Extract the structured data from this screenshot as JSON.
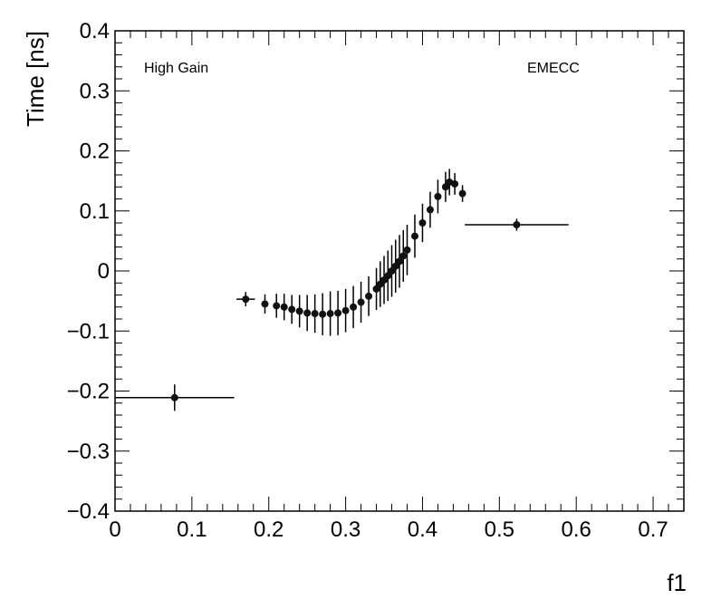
{
  "chart_data": {
    "type": "scatter",
    "xlabel": "f1",
    "ylabel": "Time [ns]",
    "xlim": [
      0,
      0.74
    ],
    "ylim": [
      -0.4,
      0.4
    ],
    "grid": false,
    "legend": "none",
    "annotations": [
      "High Gain",
      "EMECC"
    ],
    "x_major_ticks": [
      0,
      0.1,
      0.2,
      0.3,
      0.4,
      0.5,
      0.6,
      0.7
    ],
    "x_tick_labels": [
      "0",
      "0.1",
      "0.2",
      "0.3",
      "0.4",
      "0.5",
      "0.6",
      "0.7"
    ],
    "y_major_ticks": [
      -0.4,
      -0.3,
      -0.2,
      -0.1,
      0,
      0.1,
      0.2,
      0.3,
      0.4
    ],
    "y_tick_labels": [
      "−0.4",
      "−0.3",
      "−0.2",
      "−0.1",
      "0",
      "0.1",
      "0.2",
      "0.3",
      "0.4"
    ],
    "series": [
      {
        "points": [
          {
            "x": 0.0775,
            "y": -0.211,
            "xerr": 0.0775,
            "yerr": 0.022
          },
          {
            "x": 0.17,
            "y": -0.047,
            "xerr": 0.012,
            "yerr": 0.012
          },
          {
            "x": 0.195,
            "y": -0.055,
            "xerr": 0,
            "yerr": 0.016
          },
          {
            "x": 0.21,
            "y": -0.058,
            "xerr": 0,
            "yerr": 0.02
          },
          {
            "x": 0.22,
            "y": -0.06,
            "xerr": 0,
            "yerr": 0.022
          },
          {
            "x": 0.23,
            "y": -0.064,
            "xerr": 0,
            "yerr": 0.024
          },
          {
            "x": 0.24,
            "y": -0.067,
            "xerr": 0,
            "yerr": 0.027
          },
          {
            "x": 0.25,
            "y": -0.07,
            "xerr": 0,
            "yerr": 0.03
          },
          {
            "x": 0.26,
            "y": -0.071,
            "xerr": 0,
            "yerr": 0.032
          },
          {
            "x": 0.27,
            "y": -0.072,
            "xerr": 0,
            "yerr": 0.035
          },
          {
            "x": 0.28,
            "y": -0.071,
            "xerr": 0,
            "yerr": 0.037
          },
          {
            "x": 0.29,
            "y": -0.07,
            "xerr": 0,
            "yerr": 0.037
          },
          {
            "x": 0.3,
            "y": -0.066,
            "xerr": 0,
            "yerr": 0.036
          },
          {
            "x": 0.31,
            "y": -0.06,
            "xerr": 0,
            "yerr": 0.035
          },
          {
            "x": 0.32,
            "y": -0.052,
            "xerr": 0,
            "yerr": 0.034
          },
          {
            "x": 0.33,
            "y": -0.042,
            "xerr": 0,
            "yerr": 0.033
          },
          {
            "x": 0.34,
            "y": -0.03,
            "xerr": 0,
            "yerr": 0.035
          },
          {
            "x": 0.345,
            "y": -0.022,
            "xerr": 0,
            "yerr": 0.038
          },
          {
            "x": 0.35,
            "y": -0.015,
            "xerr": 0,
            "yerr": 0.04
          },
          {
            "x": 0.355,
            "y": -0.008,
            "xerr": 0,
            "yerr": 0.042
          },
          {
            "x": 0.36,
            "y": 0.0,
            "xerr": 0,
            "yerr": 0.043
          },
          {
            "x": 0.365,
            "y": 0.008,
            "xerr": 0,
            "yerr": 0.044
          },
          {
            "x": 0.37,
            "y": 0.016,
            "xerr": 0,
            "yerr": 0.044
          },
          {
            "x": 0.375,
            "y": 0.025,
            "xerr": 0,
            "yerr": 0.043
          },
          {
            "x": 0.38,
            "y": 0.035,
            "xerr": 0,
            "yerr": 0.042
          },
          {
            "x": 0.39,
            "y": 0.058,
            "xerr": 0,
            "yerr": 0.036
          },
          {
            "x": 0.4,
            "y": 0.08,
            "xerr": 0,
            "yerr": 0.032
          },
          {
            "x": 0.41,
            "y": 0.102,
            "xerr": 0,
            "yerr": 0.03
          },
          {
            "x": 0.42,
            "y": 0.124,
            "xerr": 0,
            "yerr": 0.028
          },
          {
            "x": 0.43,
            "y": 0.14,
            "xerr": 0,
            "yerr": 0.025
          },
          {
            "x": 0.435,
            "y": 0.148,
            "xerr": 0,
            "yerr": 0.022
          },
          {
            "x": 0.442,
            "y": 0.145,
            "xerr": 0,
            "yerr": 0.018
          },
          {
            "x": 0.452,
            "y": 0.129,
            "xerr": 0,
            "yerr": 0.014
          },
          {
            "x": 0.5225,
            "y": 0.077,
            "xerr": 0.0675,
            "yerr": 0.01
          }
        ]
      }
    ]
  }
}
